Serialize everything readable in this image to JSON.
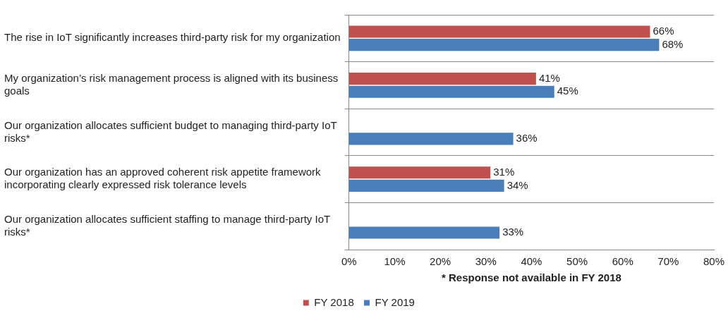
{
  "chart_data": {
    "type": "bar",
    "orientation": "horizontal",
    "categories": [
      "The rise in IoT significantly increases third-party risk for my organization",
      "My organization’s risk management process is aligned with its business goals",
      "Our organization allocates sufficient budget to managing third-party IoT risks*",
      "Our organization has an approved coherent risk appetite framework incorporating clearly expressed risk tolerance levels",
      "Our organization allocates sufficient staffing to manage third-party IoT risks*"
    ],
    "series": [
      {
        "name": "FY 2018",
        "color": "#c0504d",
        "values": [
          66,
          41,
          null,
          31,
          null
        ],
        "value_labels": [
          "66%",
          "41%",
          null,
          "31%",
          null
        ]
      },
      {
        "name": "FY 2019",
        "color": "#4a7ebb",
        "values": [
          68,
          45,
          36,
          34,
          33
        ],
        "value_labels": [
          "68%",
          "45%",
          "36%",
          "34%",
          "33%"
        ]
      }
    ],
    "xlim": [
      0,
      80
    ],
    "xticks": [
      {
        "value": 0,
        "label": "0%"
      },
      {
        "value": 10,
        "label": "10%"
      },
      {
        "value": 20,
        "label": "20%"
      },
      {
        "value": 30,
        "label": "30%"
      },
      {
        "value": 40,
        "label": "40%"
      },
      {
        "value": 50,
        "label": "50%"
      },
      {
        "value": 60,
        "label": "60%"
      },
      {
        "value": 70,
        "label": "70%"
      },
      {
        "value": 80,
        "label": "80%"
      }
    ],
    "grid": "y",
    "legend": "bottom",
    "annotations": [
      "* Response not available in FY 2018"
    ]
  }
}
